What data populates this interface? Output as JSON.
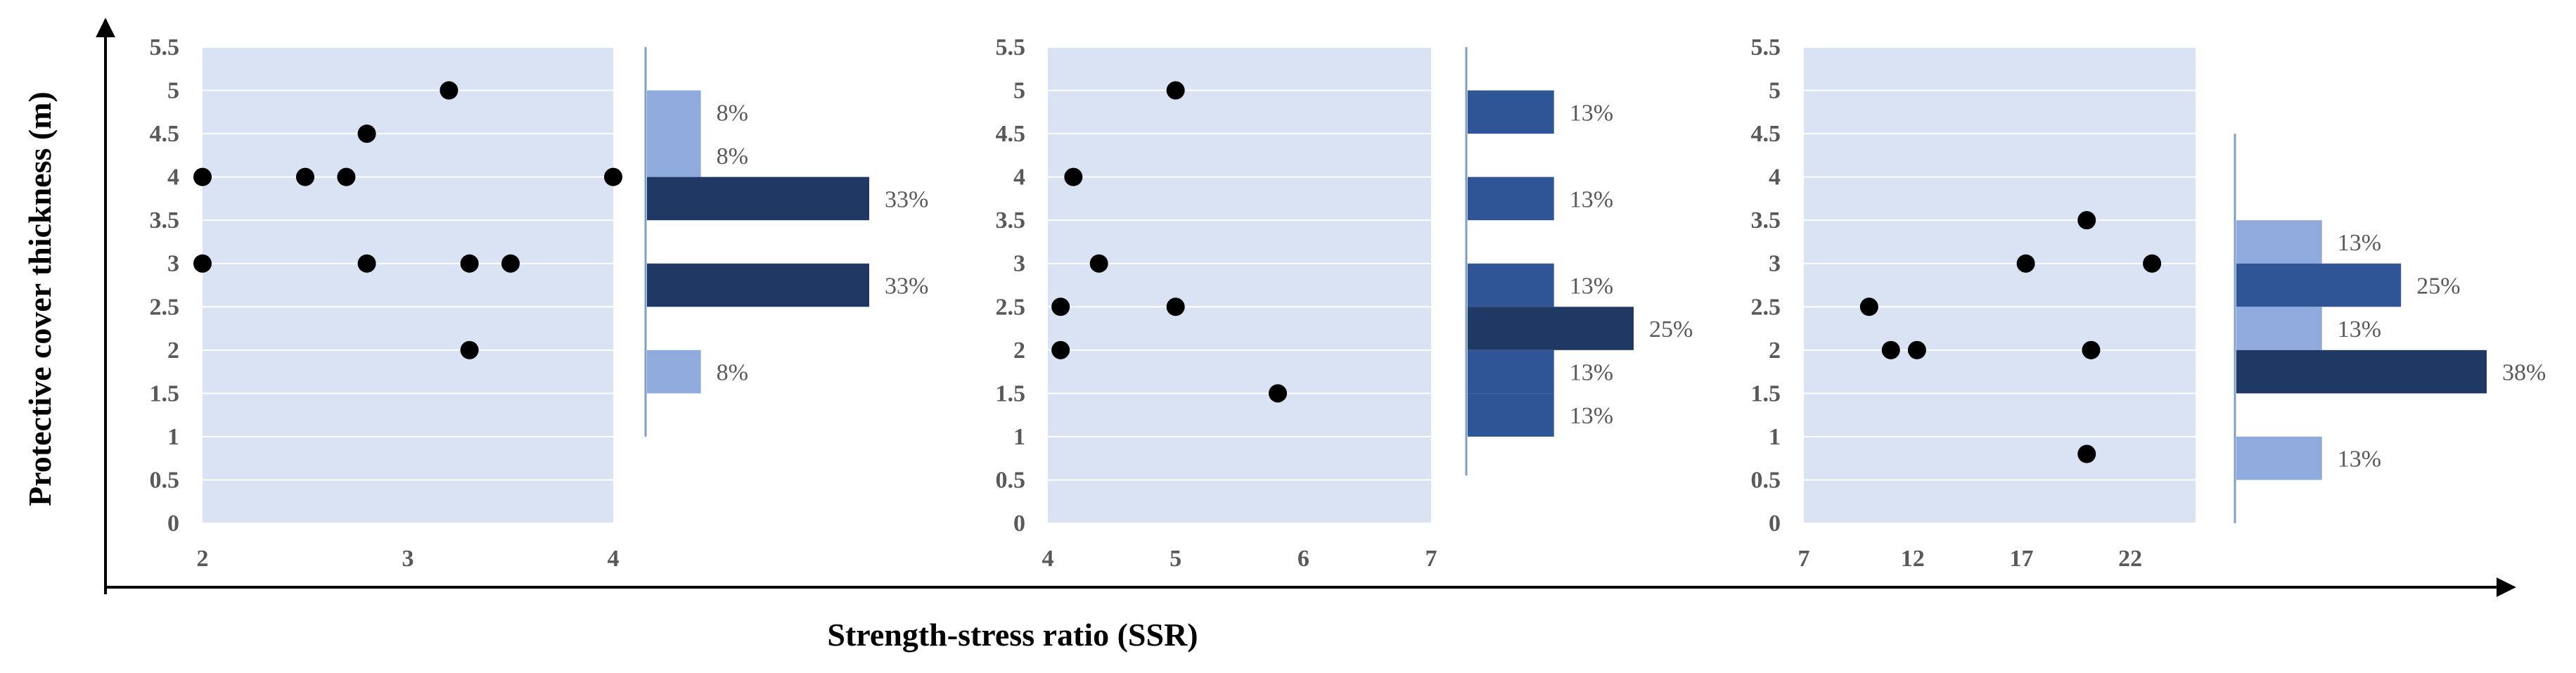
{
  "figure": {
    "xlabel": "Strength-stress ratio (SSR)",
    "ylabel": "Protective cover thickness (m)"
  },
  "colors": {
    "plot_bg": "#dae3f3",
    "gridline": "#ffffff",
    "point": "#000000",
    "bar_light": "#8faadc",
    "bar_medium": "#2f5597",
    "bar_dark": "#203864",
    "hist_axis": "#7f9fc4",
    "tick_text": "#595959"
  },
  "chart_data": [
    {
      "type": "scatter",
      "xlim": [
        2,
        4
      ],
      "ylim": [
        0,
        5.5
      ],
      "xticks": [
        "2",
        "3",
        "4"
      ],
      "yticks": [
        "0",
        "0.5",
        "1",
        "1.5",
        "2",
        "2.5",
        "3",
        "3.5",
        "4",
        "4.5",
        "5",
        "5.5"
      ],
      "points": [
        {
          "x": 2,
          "y": 4
        },
        {
          "x": 2,
          "y": 3
        },
        {
          "x": 2.5,
          "y": 4
        },
        {
          "x": 2.7,
          "y": 4
        },
        {
          "x": 2.8,
          "y": 4.5
        },
        {
          "x": 2.8,
          "y": 3
        },
        {
          "x": 3.2,
          "y": 5
        },
        {
          "x": 3.3,
          "y": 3
        },
        {
          "x": 3.5,
          "y": 3
        },
        {
          "x": 3.3,
          "y": 2
        },
        {
          "x": 4,
          "y": 4
        }
      ],
      "histogram": [
        {
          "from": 4.5,
          "to": 5,
          "percent": 8,
          "label": "8%",
          "shade": "light"
        },
        {
          "from": 4,
          "to": 4.5,
          "percent": 8,
          "label": "8%",
          "shade": "light"
        },
        {
          "from": 3.5,
          "to": 4,
          "percent": 33,
          "label": "33%",
          "shade": "dark"
        },
        {
          "from": 2.5,
          "to": 3,
          "percent": 33,
          "label": "33%",
          "shade": "dark"
        },
        {
          "from": 1.5,
          "to": 2,
          "percent": 8,
          "label": "8%",
          "shade": "light"
        }
      ],
      "hist_axis_range": [
        1,
        5.5
      ]
    },
    {
      "type": "scatter",
      "xlim": [
        4,
        7
      ],
      "ylim": [
        0,
        5.5
      ],
      "xticks": [
        "4",
        "5",
        "6",
        "7"
      ],
      "yticks": [
        "0",
        "0.5",
        "1",
        "1.5",
        "2",
        "2.5",
        "3",
        "3.5",
        "4",
        "4.5",
        "5",
        "5.5"
      ],
      "points": [
        {
          "x": 5,
          "y": 5
        },
        {
          "x": 4.2,
          "y": 4
        },
        {
          "x": 4.4,
          "y": 3
        },
        {
          "x": 4.1,
          "y": 2.5
        },
        {
          "x": 5,
          "y": 2.5
        },
        {
          "x": 4.1,
          "y": 2
        },
        {
          "x": 5.8,
          "y": 1.5
        }
      ],
      "histogram": [
        {
          "from": 4.5,
          "to": 5,
          "percent": 13,
          "label": "13%",
          "shade": "medium"
        },
        {
          "from": 3.5,
          "to": 4,
          "percent": 13,
          "label": "13%",
          "shade": "medium"
        },
        {
          "from": 2.5,
          "to": 3,
          "percent": 13,
          "label": "13%",
          "shade": "medium"
        },
        {
          "from": 2,
          "to": 2.5,
          "percent": 25,
          "label": "25%",
          "shade": "dark"
        },
        {
          "from": 1.5,
          "to": 2,
          "percent": 13,
          "label": "13%",
          "shade": "medium"
        },
        {
          "from": 1,
          "to": 1.5,
          "percent": 13,
          "label": "13%",
          "shade": "medium"
        }
      ],
      "hist_axis_range": [
        0.55,
        5.5
      ]
    },
    {
      "type": "scatter",
      "xlim": [
        7,
        25
      ],
      "ylim": [
        0,
        5.5
      ],
      "xticks": [
        "7",
        "12",
        "17",
        "22"
      ],
      "yticks": [
        "0",
        "0.5",
        "1",
        "1.5",
        "2",
        "2.5",
        "3",
        "3.5",
        "4",
        "4.5",
        "5",
        "5.5"
      ],
      "points": [
        {
          "x": 10,
          "y": 2.5
        },
        {
          "x": 11,
          "y": 2
        },
        {
          "x": 12.2,
          "y": 2
        },
        {
          "x": 17.2,
          "y": 3
        },
        {
          "x": 20,
          "y": 3.5
        },
        {
          "x": 20.2,
          "y": 2
        },
        {
          "x": 23,
          "y": 3
        },
        {
          "x": 20,
          "y": 0.8
        }
      ],
      "histogram": [
        {
          "from": 3,
          "to": 3.5,
          "percent": 13,
          "label": "13%",
          "shade": "light"
        },
        {
          "from": 2.5,
          "to": 3,
          "percent": 25,
          "label": "25%",
          "shade": "medium"
        },
        {
          "from": 2,
          "to": 2.5,
          "percent": 13,
          "label": "13%",
          "shade": "light"
        },
        {
          "from": 1.5,
          "to": 2,
          "percent": 38,
          "label": "38%",
          "shade": "dark"
        },
        {
          "from": 0.5,
          "to": 1,
          "percent": 13,
          "label": "13%",
          "shade": "light"
        }
      ],
      "hist_axis_range": [
        0,
        4.5
      ]
    }
  ]
}
